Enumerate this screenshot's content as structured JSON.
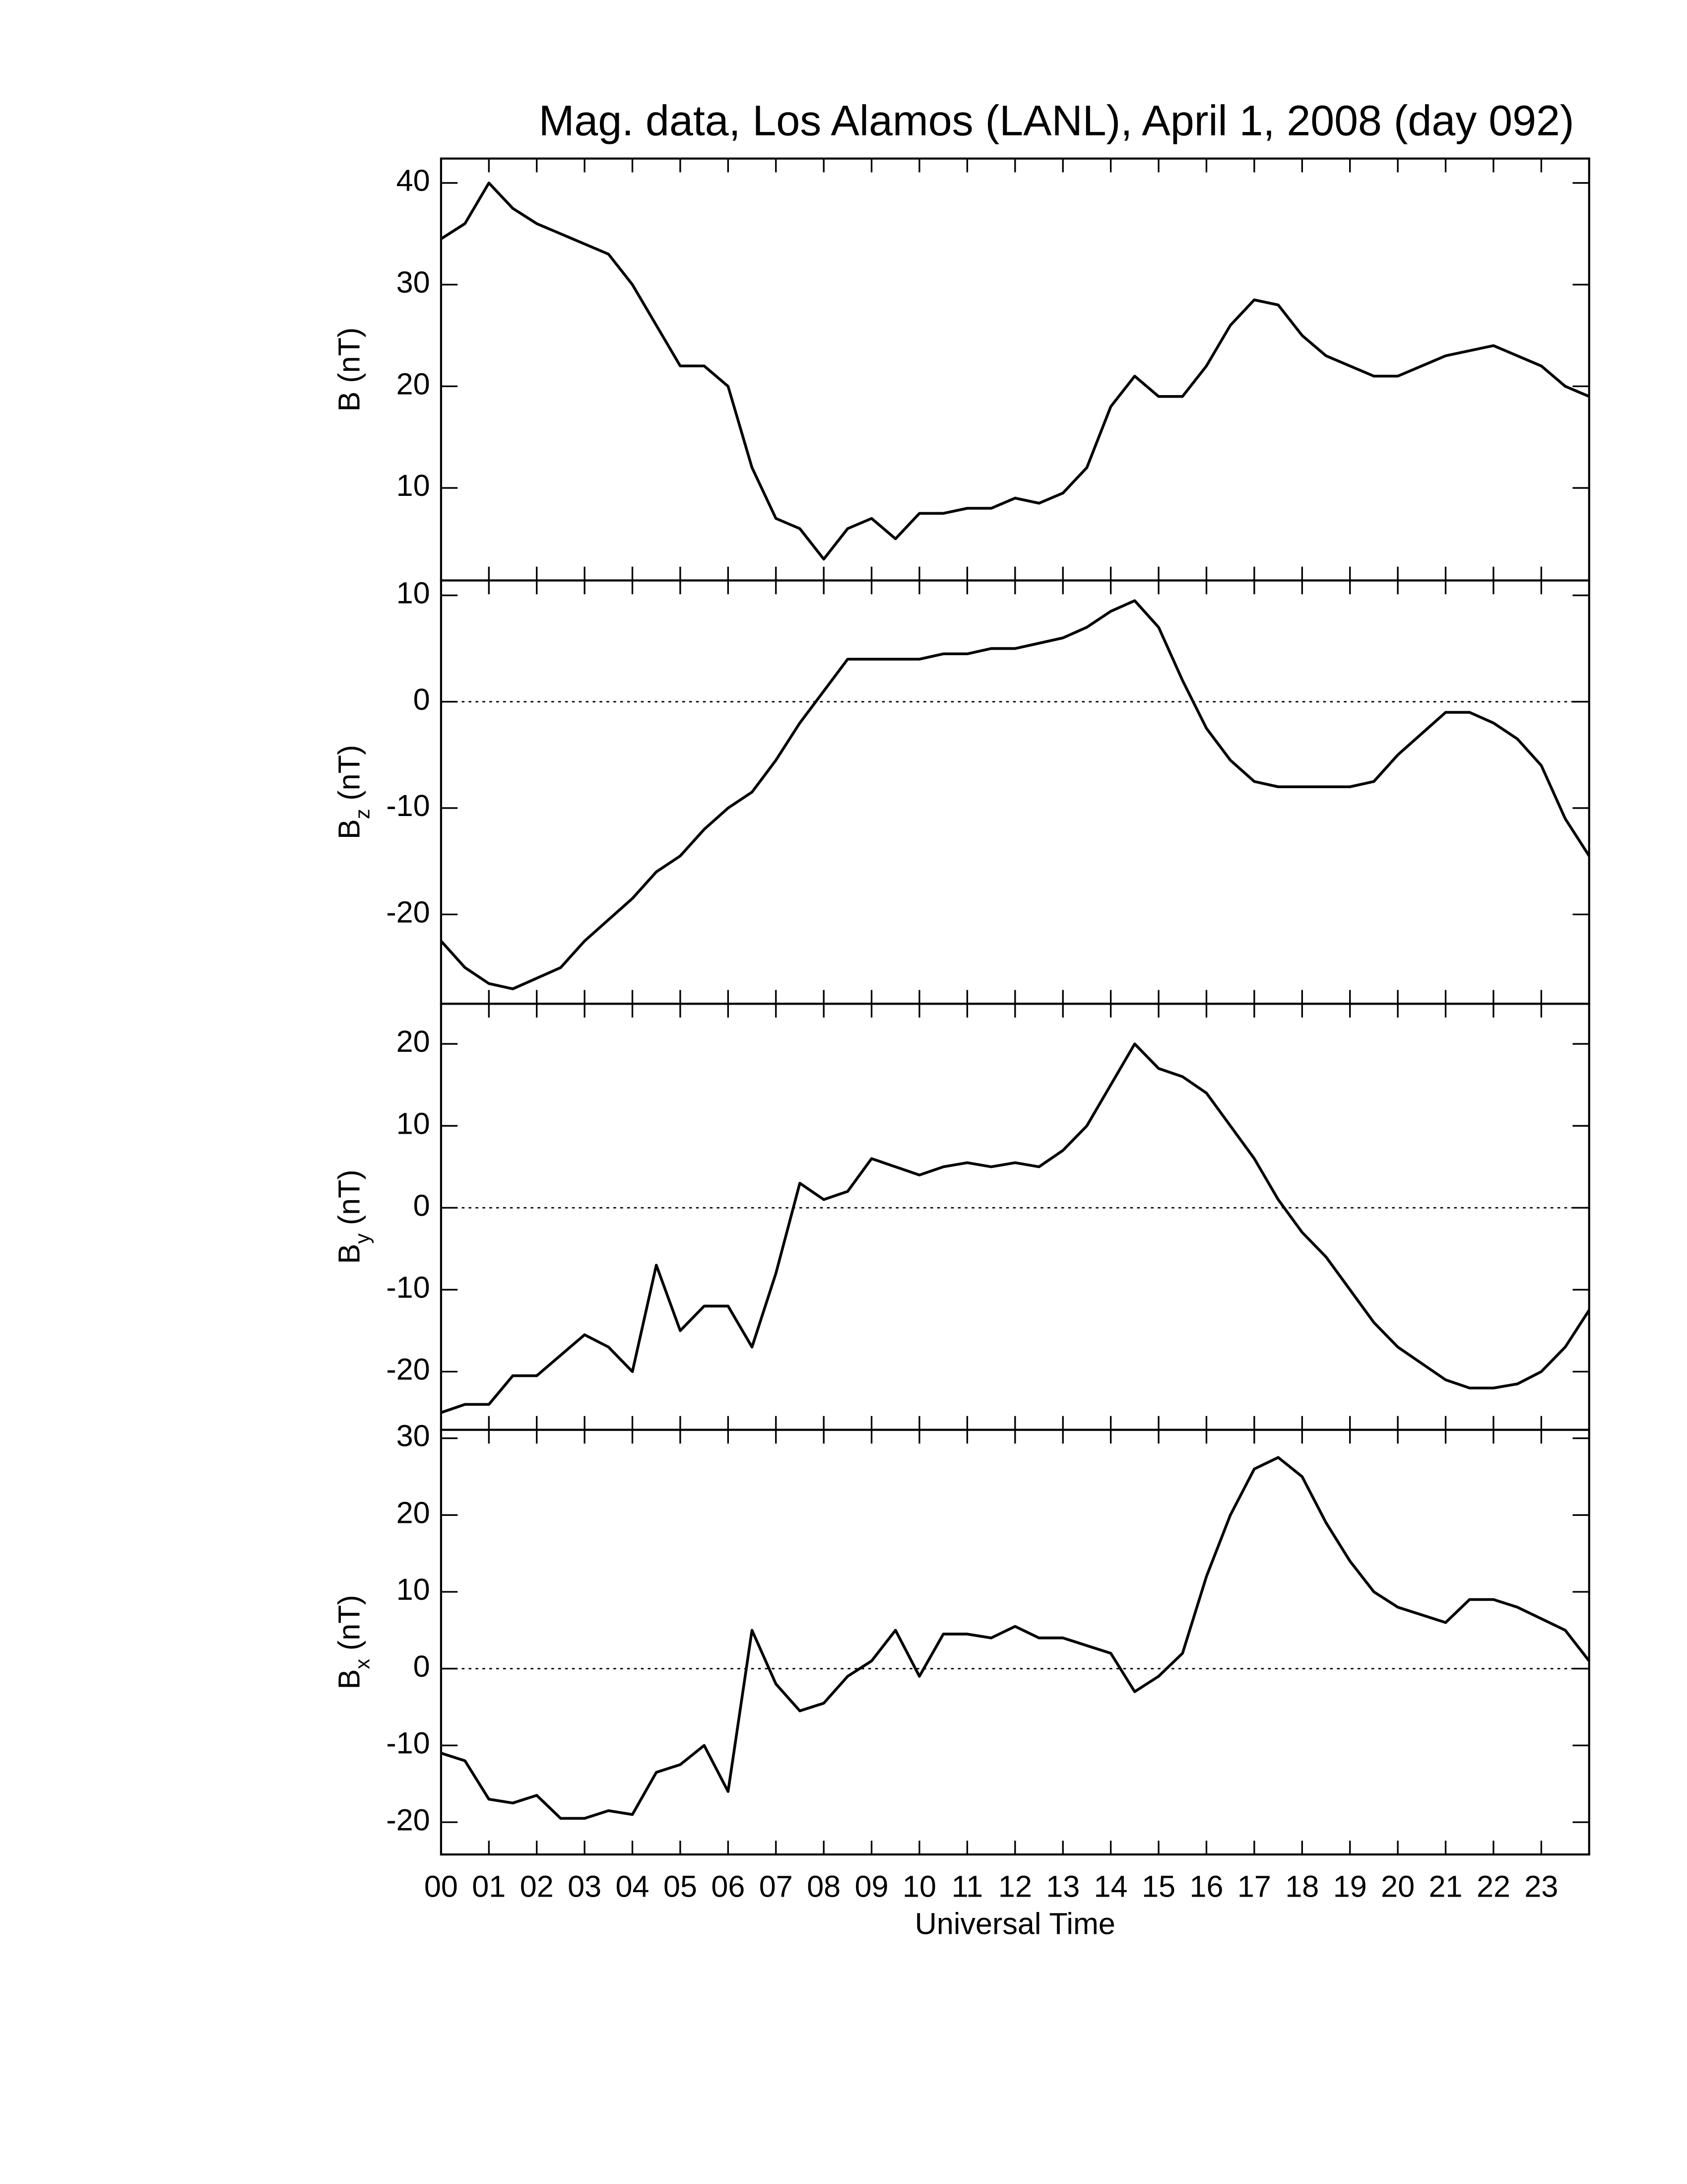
{
  "chart_data": [
    {
      "type": "line",
      "title": "Mag. data, Los Alamos (LANL), April 1, 2008 (day 092)",
      "ylabel": "B (nT)",
      "x": [
        0,
        0.5,
        1,
        1.5,
        2,
        2.5,
        3,
        3.5,
        4,
        4.5,
        5,
        5.5,
        6,
        6.5,
        7,
        7.5,
        8,
        8.5,
        9,
        9.5,
        10,
        10.5,
        11,
        11.5,
        12,
        12.5,
        13,
        13.5,
        14,
        14.5,
        15,
        15.5,
        16,
        16.5,
        17,
        17.5,
        18,
        18.5,
        19,
        19.5,
        20,
        20.5,
        21,
        21.5,
        22,
        22.5,
        23,
        23.5,
        24
      ],
      "values": [
        34.5,
        36,
        40,
        37.5,
        36,
        35,
        34,
        33,
        30,
        26,
        22,
        22,
        20,
        12,
        7,
        6,
        3,
        6,
        7,
        5,
        7.5,
        7.5,
        8,
        8,
        9,
        8.5,
        9.5,
        12,
        18,
        21,
        19,
        19,
        22,
        26,
        28.5,
        28,
        25,
        23,
        22,
        21,
        21,
        22,
        23,
        23.5,
        24,
        23,
        22,
        20,
        19
      ],
      "color": "#000000",
      "xlim": [
        0,
        24
      ],
      "xticks": [
        0,
        1,
        2,
        3,
        4,
        5,
        6,
        7,
        8,
        9,
        10,
        11,
        12,
        13,
        14,
        15,
        16,
        17,
        18,
        19,
        20,
        21,
        22,
        23,
        24
      ],
      "ylim": [
        0.9,
        42.4
      ],
      "yticks": [
        10,
        20,
        30,
        40
      ]
    },
    {
      "type": "line",
      "ylabel": "B",
      "ylabel_sub": "z",
      "ylabel_unit": "(nT)",
      "x": [
        0,
        0.5,
        1,
        1.5,
        2,
        2.5,
        3,
        3.5,
        4,
        4.5,
        5,
        5.5,
        6,
        6.5,
        7,
        7.5,
        8,
        8.5,
        9,
        9.5,
        10,
        10.5,
        11,
        11.5,
        12,
        12.5,
        13,
        13.5,
        14,
        14.5,
        15,
        15.5,
        16,
        16.5,
        17,
        17.5,
        18,
        18.5,
        19,
        19.5,
        20,
        20.5,
        21,
        21.5,
        22,
        22.5,
        23,
        23.5,
        24
      ],
      "values": [
        -22.5,
        -25,
        -26.5,
        -27,
        -26,
        -25,
        -22.5,
        -20.5,
        -18.5,
        -16,
        -14.5,
        -12,
        -10,
        -8.5,
        -5.5,
        -2,
        1,
        4,
        4,
        4,
        4,
        4.5,
        4.5,
        5,
        5,
        5.5,
        6,
        7,
        8.5,
        9.5,
        7,
        2,
        -2.5,
        -5.5,
        -7.5,
        -8,
        -8,
        -8,
        -8,
        -7.5,
        -5,
        -3,
        -1,
        -1,
        -2,
        -3.5,
        -6,
        -11,
        -14.5
      ],
      "color": "#000000",
      "xlim": [
        0,
        24
      ],
      "xticks": [
        0,
        1,
        2,
        3,
        4,
        5,
        6,
        7,
        8,
        9,
        10,
        11,
        12,
        13,
        14,
        15,
        16,
        17,
        18,
        19,
        20,
        21,
        22,
        23,
        24
      ],
      "ylim": [
        -28.4,
        11.4
      ],
      "yticks": [
        -20,
        -10,
        0,
        10
      ],
      "zero_line": "dotted"
    },
    {
      "type": "line",
      "ylabel": "B",
      "ylabel_sub": "y",
      "ylabel_unit": "(nT)",
      "x": [
        0,
        0.5,
        1,
        1.5,
        2,
        2.5,
        3,
        3.5,
        4,
        4.5,
        5,
        5.5,
        6,
        6.5,
        7,
        7.5,
        8,
        8.5,
        9,
        9.5,
        10,
        10.5,
        11,
        11.5,
        12,
        12.5,
        13,
        13.5,
        14,
        14.5,
        15,
        15.5,
        16,
        16.5,
        17,
        17.5,
        18,
        18.5,
        19,
        19.5,
        20,
        20.5,
        21,
        21.5,
        22,
        22.5,
        23,
        23.5,
        24
      ],
      "values": [
        -25,
        -24,
        -24,
        -20.5,
        -20.5,
        -18,
        -15.5,
        -17,
        -20,
        -7,
        -15,
        -12,
        -12,
        -17,
        -8,
        3,
        1,
        2,
        6,
        5,
        4,
        5,
        5.5,
        5,
        5.5,
        5,
        7,
        10,
        15,
        20,
        17,
        16,
        14,
        10,
        6,
        1,
        -3,
        -6,
        -10,
        -14,
        -17,
        -19,
        -21,
        -22,
        -22,
        -21.5,
        -20,
        -17,
        -12.5
      ],
      "color": "#000000",
      "xlim": [
        0,
        24
      ],
      "xticks": [
        0,
        1,
        2,
        3,
        4,
        5,
        6,
        7,
        8,
        9,
        10,
        11,
        12,
        13,
        14,
        15,
        16,
        17,
        18,
        19,
        20,
        21,
        22,
        23,
        24
      ],
      "ylim": [
        -27.1,
        24.9
      ],
      "yticks": [
        -20,
        -10,
        0,
        10,
        20
      ],
      "zero_line": "dotted"
    },
    {
      "type": "line",
      "ylabel": "B",
      "ylabel_sub": "x",
      "ylabel_unit": "(nT)",
      "xlabel": "Universal Time",
      "x": [
        0,
        0.5,
        1,
        1.5,
        2,
        2.5,
        3,
        3.5,
        4,
        4.5,
        5,
        5.5,
        6,
        6.5,
        7,
        7.5,
        8,
        8.5,
        9,
        9.5,
        10,
        10.5,
        11,
        11.5,
        12,
        12.5,
        13,
        13.5,
        14,
        14.5,
        15,
        15.5,
        16,
        16.5,
        17,
        17.5,
        18,
        18.5,
        19,
        19.5,
        20,
        20.5,
        21,
        21.5,
        22,
        22.5,
        23,
        23.5,
        24
      ],
      "values": [
        -11,
        -12,
        -17,
        -17.5,
        -16.5,
        -19.5,
        -19.5,
        -18.5,
        -19,
        -13.5,
        -12.5,
        -10,
        -16,
        5,
        -2,
        -5.5,
        -4.5,
        -1,
        1,
        5,
        -1,
        4.5,
        4.5,
        4,
        5.5,
        4,
        4,
        3,
        2,
        -3,
        -1,
        2,
        12,
        20,
        26,
        27.5,
        25,
        19,
        14,
        10,
        8,
        7,
        6,
        9,
        9,
        8,
        6.5,
        5,
        1
      ],
      "color": "#000000",
      "xlim": [
        0,
        24
      ],
      "xticks": [
        {
          "value": 0,
          "label": "00"
        },
        {
          "value": 1,
          "label": "01"
        },
        {
          "value": 2,
          "label": "02"
        },
        {
          "value": 3,
          "label": "03"
        },
        {
          "value": 4,
          "label": "04"
        },
        {
          "value": 5,
          "label": "05"
        },
        {
          "value": 6,
          "label": "06"
        },
        {
          "value": 7,
          "label": "07"
        },
        {
          "value": 8,
          "label": "08"
        },
        {
          "value": 9,
          "label": "09"
        },
        {
          "value": 10,
          "label": "10"
        },
        {
          "value": 11,
          "label": "11"
        },
        {
          "value": 12,
          "label": "12"
        },
        {
          "value": 13,
          "label": "13"
        },
        {
          "value": 14,
          "label": "14"
        },
        {
          "value": 15,
          "label": "15"
        },
        {
          "value": 16,
          "label": "16"
        },
        {
          "value": 17,
          "label": "17"
        },
        {
          "value": 18,
          "label": "18"
        },
        {
          "value": 19,
          "label": "19"
        },
        {
          "value": 20,
          "label": "20"
        },
        {
          "value": 21,
          "label": "21"
        },
        {
          "value": 22,
          "label": "22"
        },
        {
          "value": 23,
          "label": "23"
        }
      ],
      "ylim": [
        -24.2,
        31.1
      ],
      "yticks": [
        -20,
        -10,
        0,
        10,
        20,
        30
      ],
      "zero_line": "dotted"
    }
  ]
}
